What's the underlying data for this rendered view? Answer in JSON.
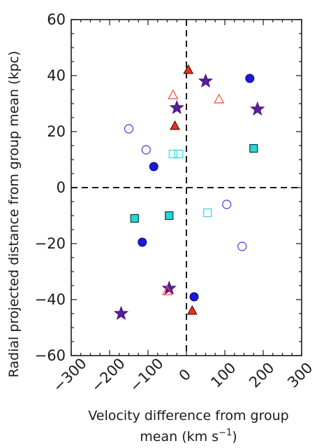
{
  "chart_data": {
    "type": "scatter",
    "title": "",
    "xlabel_lines": [
      "Velocity difference from group",
      "mean (km s",
      "−1",
      ")"
    ],
    "ylabel": "Radial projected distance from group mean (kpc)",
    "xlim": [
      -300,
      300
    ],
    "ylim": [
      -60,
      60
    ],
    "x_ticks": [
      -300,
      -200,
      -100,
      0,
      100,
      200,
      300
    ],
    "x_tick_labels": [
      "−300",
      "−200",
      "−100",
      "0",
      "100",
      "200",
      "300"
    ],
    "y_ticks": [
      -60,
      -40,
      -20,
      0,
      20,
      40,
      60
    ],
    "y_tick_labels": [
      "−60",
      "−40",
      "−20",
      "0",
      "20",
      "40",
      "60"
    ],
    "grid": false,
    "reference_lines": {
      "x": 0,
      "y": 0,
      "style": "dashed"
    },
    "series": [
      {
        "marker": "star",
        "fill": "#5b1d9a",
        "stroke": "#3a0f6e",
        "points": [
          [
            -25,
            28.5
          ],
          [
            50,
            38
          ],
          [
            185,
            28
          ],
          [
            -45,
            -36
          ],
          [
            -170,
            -45
          ]
        ]
      },
      {
        "marker": "triangle",
        "fill": "#e8301c",
        "stroke": "#2a0a05",
        "points": [
          [
            5,
            42
          ],
          [
            -30,
            22
          ],
          [
            15,
            -44
          ]
        ]
      },
      {
        "marker": "triangle-open",
        "fill": "none",
        "stroke": "#f04a30",
        "points": [
          [
            -35,
            33
          ],
          [
            85,
            31.5
          ],
          [
            -50,
            -37
          ]
        ]
      },
      {
        "marker": "circle",
        "fill": "#1a1ad8",
        "stroke": "#0a0a70",
        "points": [
          [
            165,
            39
          ],
          [
            -85,
            7.5
          ],
          [
            -115,
            -19.5
          ],
          [
            20,
            -39
          ]
        ]
      },
      {
        "marker": "circle-open",
        "fill": "none",
        "stroke": "#3a3ae0",
        "points": [
          [
            -150,
            21
          ],
          [
            -105,
            13.5
          ],
          [
            105,
            -6
          ],
          [
            145,
            -21
          ]
        ]
      },
      {
        "marker": "square",
        "fill": "#22d8d8",
        "stroke": "#0a3a3a",
        "points": [
          [
            175,
            14
          ],
          [
            -135,
            -11
          ],
          [
            -45,
            -10
          ]
        ]
      },
      {
        "marker": "square-open",
        "fill": "none",
        "stroke": "#30d8e8",
        "points": [
          [
            -35,
            12
          ],
          [
            -20,
            12
          ],
          [
            55,
            -9
          ]
        ]
      }
    ]
  }
}
